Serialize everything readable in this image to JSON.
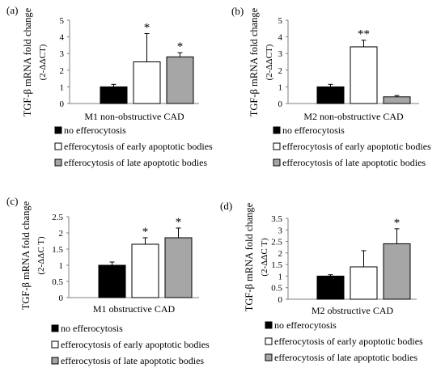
{
  "colors": {
    "no_efferocytosis": "#000000",
    "early": "#ffffff",
    "late": "#a6a6a6",
    "axis": "#7f7f7f"
  },
  "legend": [
    {
      "label": "no efferocytosis",
      "color": "#000000"
    },
    {
      "label": "efferocytosis of early apoptotic bodies",
      "color": "#ffffff"
    },
    {
      "label": "efferocytosis of late apoptotic bodies",
      "color": "#a6a6a6"
    }
  ],
  "chart_data": [
    {
      "type": "bar",
      "panel": "(a)",
      "category": "M1 non-obstructive CAD",
      "ylabel": "TGF-β mRNA fold change",
      "ylabel_sub": "(2-ΔΔCT)",
      "ylim": [
        0,
        5
      ],
      "yticks": [
        "0",
        "1",
        "2",
        "3",
        "4",
        "5"
      ],
      "series": [
        {
          "name": "no efferocytosis",
          "value": 1.0,
          "error": 0.15,
          "sig": ""
        },
        {
          "name": "efferocytosis of early apoptotic bodies",
          "value": 2.5,
          "error": 1.7,
          "sig": "*"
        },
        {
          "name": "efferocytosis of late apoptotic bodies",
          "value": 2.8,
          "error": 0.25,
          "sig": "*"
        }
      ]
    },
    {
      "type": "bar",
      "panel": "(b)",
      "category": "M2 non-obstructive CAD",
      "ylabel": "TGF-β mRNA fold change",
      "ylabel_sub": "(2-ΔΔCT)",
      "ylim": [
        0,
        5
      ],
      "yticks": [
        "0",
        "1",
        "2",
        "3",
        "4",
        "5"
      ],
      "series": [
        {
          "name": "no efferocytosis",
          "value": 1.0,
          "error": 0.15,
          "sig": ""
        },
        {
          "name": "efferocytosis of early apoptotic bodies",
          "value": 3.4,
          "error": 0.4,
          "sig": "**"
        },
        {
          "name": "efferocytosis of late apoptotic bodies",
          "value": 0.4,
          "error": 0.08,
          "sig": ""
        }
      ]
    },
    {
      "type": "bar",
      "panel": "(c)",
      "category": "M1 obstructive CAD",
      "ylabel": "TGF-β mRNA fold change",
      "ylabel_sub": "(2-ΔΔC T)",
      "ylim": [
        0,
        2.5
      ],
      "yticks": [
        "0",
        "0.5",
        "1",
        "1.5",
        "2",
        "2.5"
      ],
      "series": [
        {
          "name": "no efferocytosis",
          "value": 1.0,
          "error": 0.1,
          "sig": ""
        },
        {
          "name": "efferocytosis of early apoptotic bodies",
          "value": 1.65,
          "error": 0.2,
          "sig": "*"
        },
        {
          "name": "efferocytosis of late apoptotic bodies",
          "value": 1.85,
          "error": 0.3,
          "sig": "*"
        }
      ]
    },
    {
      "type": "bar",
      "panel": "(d)",
      "category": "M2 obstructive CAD",
      "ylabel": "TGF-β mRNA fold change",
      "ylabel_sub": "(2-ΔΔC T)",
      "ylim": [
        0,
        3.5
      ],
      "yticks": [
        "0",
        "0.5",
        "1",
        "1.5",
        "2",
        "2.5",
        "3",
        "3.5"
      ],
      "series": [
        {
          "name": "no efferocytosis",
          "value": 1.0,
          "error": 0.06,
          "sig": ""
        },
        {
          "name": "efferocytosis of early apoptotic bodies",
          "value": 1.4,
          "error": 0.7,
          "sig": ""
        },
        {
          "name": "efferocytosis of late apoptotic bodies",
          "value": 2.4,
          "error": 0.65,
          "sig": "*"
        }
      ]
    }
  ]
}
